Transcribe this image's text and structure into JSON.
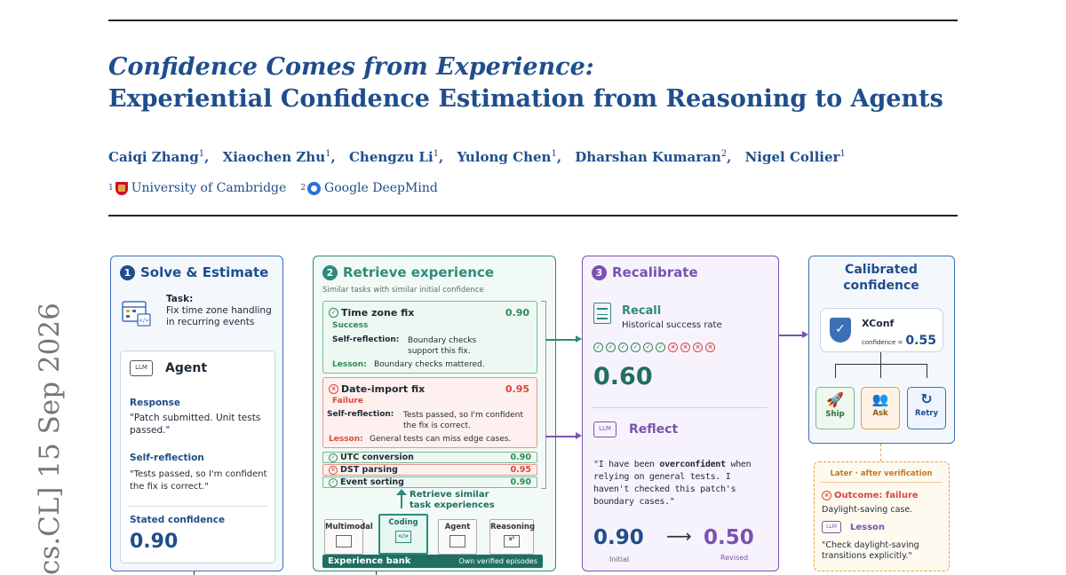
{
  "paper": {
    "title_line1": "Confidence Comes from Experience:",
    "title_line2": "Experiential Confidence Estimation from Reasoning to Agents",
    "authors": [
      {
        "name": "Caiqi Zhang",
        "aff": "1"
      },
      {
        "name": "Xiaochen Zhu",
        "aff": "1"
      },
      {
        "name": "Chengzu Li",
        "aff": "1"
      },
      {
        "name": "Yulong Chen",
        "aff": "1"
      },
      {
        "name": "Dharshan Kumaran",
        "aff": "2"
      },
      {
        "name": "Nigel Collier",
        "aff": "1"
      }
    ],
    "affiliations": [
      {
        "num": "1",
        "name": "University of Cambridge"
      },
      {
        "num": "2",
        "name": "Google DeepMind"
      }
    ],
    "arxiv_stamp": "cs.CL]  15 Sep 2026"
  },
  "figure": {
    "colors": {
      "blue": "#3b6fb6",
      "teal": "#2e8b7a",
      "purple": "#7b52b0",
      "green": "#2e8b57",
      "red": "#d9483b",
      "orange": "#e0a040"
    },
    "panel1": {
      "num": "1",
      "title": "Solve & Estimate",
      "task_label": "Task:",
      "task_text": "Fix time zone handling in recurring events",
      "agent_label": "Agent",
      "response_label": "Response",
      "response_text": "\"Patch submitted. Unit tests passed.\"",
      "reflection_label": "Self-reflection",
      "reflection_text": "\"Tests passed, so I'm confident the fix is correct.\"",
      "stated_label": "Stated confidence",
      "stated_value": "0.90"
    },
    "panel2": {
      "num": "2",
      "title": "Retrieve experience",
      "subtitle": "Similar tasks with similar initial confidence",
      "succ": {
        "title": "Time zone fix",
        "score": "0.90",
        "status": "Success",
        "refl_label": "Self-reflection:",
        "refl_text": "Boundary checks support this fix.",
        "lesson_label": "Lesson:",
        "lesson_text": "Boundary checks mattered."
      },
      "fail": {
        "title": "Date-import fix",
        "score": "0.95",
        "status": "Failure",
        "refl_label": "Self-reflection:",
        "refl_text": "Tests passed, so I'm confident the fix is correct.",
        "lesson_label": "Lesson:",
        "lesson_text": "General tests can miss edge cases."
      },
      "rows": [
        {
          "name": "UTC conversion",
          "score": "0.90",
          "ok": true
        },
        {
          "name": "DST parsing",
          "score": "0.95",
          "ok": false
        },
        {
          "name": "Event sorting",
          "score": "0.90",
          "ok": true
        }
      ],
      "retrieve_note": "Retrieve similar task experiences",
      "bank_items": [
        "Multimodal",
        "Coding",
        "Agent",
        "Reasoning"
      ],
      "bank_label": "Experience bank",
      "bank_sub": "Own verified episodes"
    },
    "panel3": {
      "num": "3",
      "title": "Recalibrate",
      "recall_label": "Recall",
      "recall_sub": "Historical success rate",
      "history": [
        true,
        true,
        true,
        true,
        true,
        true,
        false,
        false,
        false,
        false
      ],
      "rate": "0.60",
      "reflect_label": "Reflect",
      "quote_pre": "\"I have been ",
      "quote_bold": "overconfident",
      "quote_post": " when relying on general tests. I haven't checked this patch's boundary cases.\"",
      "initial": "0.90",
      "initial_label": "Initial",
      "revised": "0.50",
      "revised_label": "Revised"
    },
    "panel4": {
      "title": "Calibrated confidence",
      "model": "XConf",
      "conf_label": "confidence =",
      "conf_value": "0.55",
      "actions": [
        "Ship",
        "Ask",
        "Retry"
      ]
    },
    "panel5": {
      "header": "Later · after verification",
      "outcome": "Outcome: failure",
      "outcome_sub": "Daylight-saving case.",
      "lesson_label": "Lesson",
      "lesson_text": "\"Check daylight-saving transitions explicitly.\""
    },
    "llm_tag": "LLM"
  }
}
